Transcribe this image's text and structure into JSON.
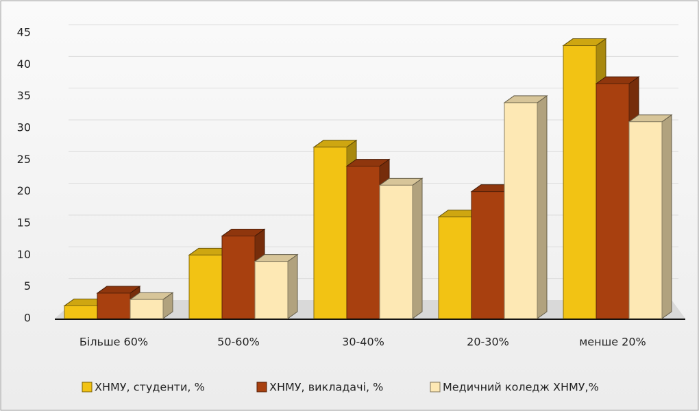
{
  "chart_data": {
    "type": "bar",
    "categories": [
      "Більше 60%",
      "50-60%",
      "30-40%",
      "20-30%",
      "менше 20%"
    ],
    "series": [
      {
        "name": "ХНМУ, студенти, %",
        "color": "#f2c314",
        "values": [
          2,
          10,
          27,
          16,
          43
        ]
      },
      {
        "name": "ХНМУ, викладачі, %",
        "color": "#a8400f",
        "values": [
          4,
          13,
          24,
          20,
          37
        ]
      },
      {
        "name": "Медичний коледж ХНМУ,%",
        "color": "#fde8b4",
        "values": [
          3,
          9,
          21,
          34,
          31
        ]
      }
    ],
    "ylim": [
      0,
      45
    ],
    "yticks": [
      0,
      5,
      10,
      15,
      20,
      25,
      30,
      35,
      40,
      45
    ],
    "grid": true,
    "legend": "bottom"
  }
}
